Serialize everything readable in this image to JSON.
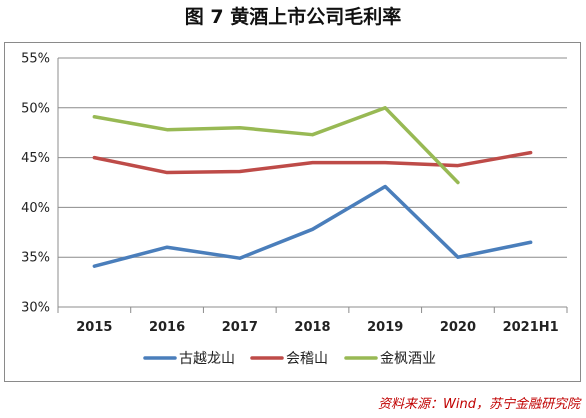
{
  "page": {
    "title": "图 7  黄酒上市公司毛利率",
    "source": "资料来源：Wind，苏宁金融研究院"
  },
  "chart_data": {
    "type": "line",
    "title": "图 7  黄酒上市公司毛利率",
    "categories": [
      "2015",
      "2016",
      "2017",
      "2018",
      "2019",
      "2020",
      "2021H1"
    ],
    "ylim": [
      30,
      55
    ],
    "yticks": [
      30,
      35,
      40,
      45,
      50,
      55
    ],
    "ytick_labels": [
      "30%",
      "35%",
      "40%",
      "45%",
      "50%",
      "55%"
    ],
    "grid": true,
    "legend_position": "bottom",
    "series": [
      {
        "name": "古越龙山",
        "color": "#4a7ebb",
        "values": [
          34.1,
          36.0,
          34.9,
          37.8,
          42.1,
          35.0,
          36.5
        ]
      },
      {
        "name": "会稽山",
        "color": "#be4b48",
        "values": [
          45.0,
          43.5,
          43.6,
          44.5,
          44.5,
          44.2,
          45.5
        ]
      },
      {
        "name": "金枫酒业",
        "color": "#98b954",
        "values": [
          49.1,
          47.8,
          48.0,
          47.3,
          50.0,
          42.5,
          null
        ]
      }
    ]
  }
}
